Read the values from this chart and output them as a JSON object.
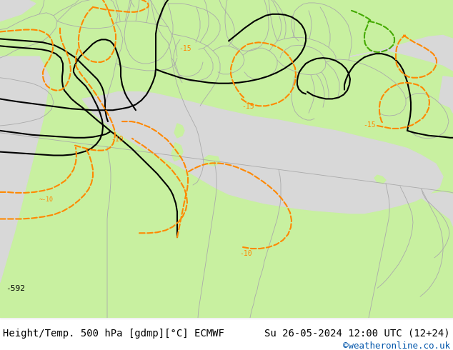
{
  "title_left": "Height/Temp. 500 hPa [gdmp][°C] ECMWF",
  "title_right": "Su 26-05-2024 12:00 UTC (12+24)",
  "credit": "©weatheronline.co.uk",
  "footer_bg": "#ffffff",
  "footer_text_color": "#000000",
  "credit_color": "#0055aa",
  "footer_fontsize": 10,
  "credit_fontsize": 9,
  "fig_width": 6.34,
  "fig_height": 4.9,
  "dpi": 100,
  "land_color": "#c8f0a0",
  "sea_color": "#d8d8d8",
  "black_lw": 1.5,
  "orange_lw": 1.5,
  "green_lw": 1.5,
  "border_color": "#aaaaaa",
  "border_lw": 0.6,
  "black_color": "#000000",
  "orange_color": "#ff8800",
  "green_color": "#44aa00",
  "red_orange_color": "#dd4400"
}
